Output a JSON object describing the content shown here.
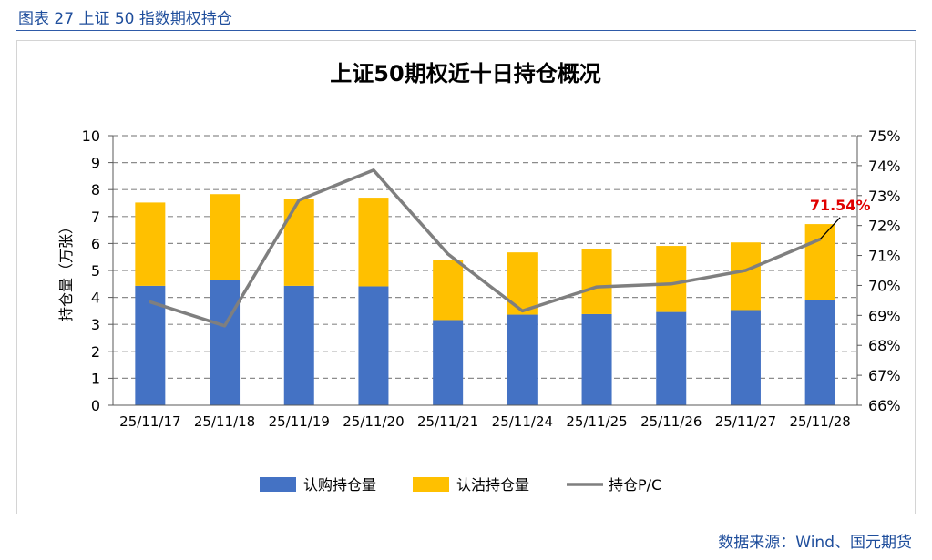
{
  "caption": "图表 27 上证 50 指数期权持仓",
  "source": "数据来源：Wind、国元期货",
  "chart_data": {
    "type": "bar",
    "stacked": true,
    "title": "上证50期权近十日持仓概况",
    "categories": [
      "25/11/17",
      "25/11/18",
      "25/11/19",
      "25/11/20",
      "25/11/21",
      "25/11/24",
      "25/11/25",
      "25/11/26",
      "25/11/27",
      "25/11/28"
    ],
    "ylabel": "持仓量（万张）",
    "ylim": [
      0,
      10
    ],
    "yticks": [
      "0",
      "1",
      "2",
      "3",
      "4",
      "5",
      "6",
      "7",
      "8",
      "9",
      "10"
    ],
    "y2lim": [
      66,
      75
    ],
    "y2ticks": [
      "66%",
      "67%",
      "68%",
      "69%",
      "70%",
      "71%",
      "72%",
      "73%",
      "74%",
      "75%"
    ],
    "grid": true,
    "legend_position": "bottom",
    "series": [
      {
        "name": "认购持仓量",
        "kind": "bar",
        "color": "#4472c4",
        "values": [
          4.43,
          4.64,
          4.43,
          4.41,
          3.16,
          3.36,
          3.38,
          3.46,
          3.53,
          3.89
        ]
      },
      {
        "name": "认沽持仓量",
        "kind": "bar",
        "color": "#ffc000",
        "values": [
          3.09,
          3.19,
          3.23,
          3.29,
          2.24,
          2.31,
          2.42,
          2.45,
          2.51,
          2.83
        ]
      },
      {
        "name": "持仓P/C",
        "kind": "line",
        "axis": "right",
        "color": "#7f7f7f",
        "values": [
          69.45,
          68.65,
          72.85,
          73.85,
          71.05,
          69.15,
          69.95,
          70.05,
          70.5,
          71.54
        ]
      }
    ],
    "annotation": {
      "text": "71.54%",
      "color": "#e00000",
      "index": 9
    }
  }
}
